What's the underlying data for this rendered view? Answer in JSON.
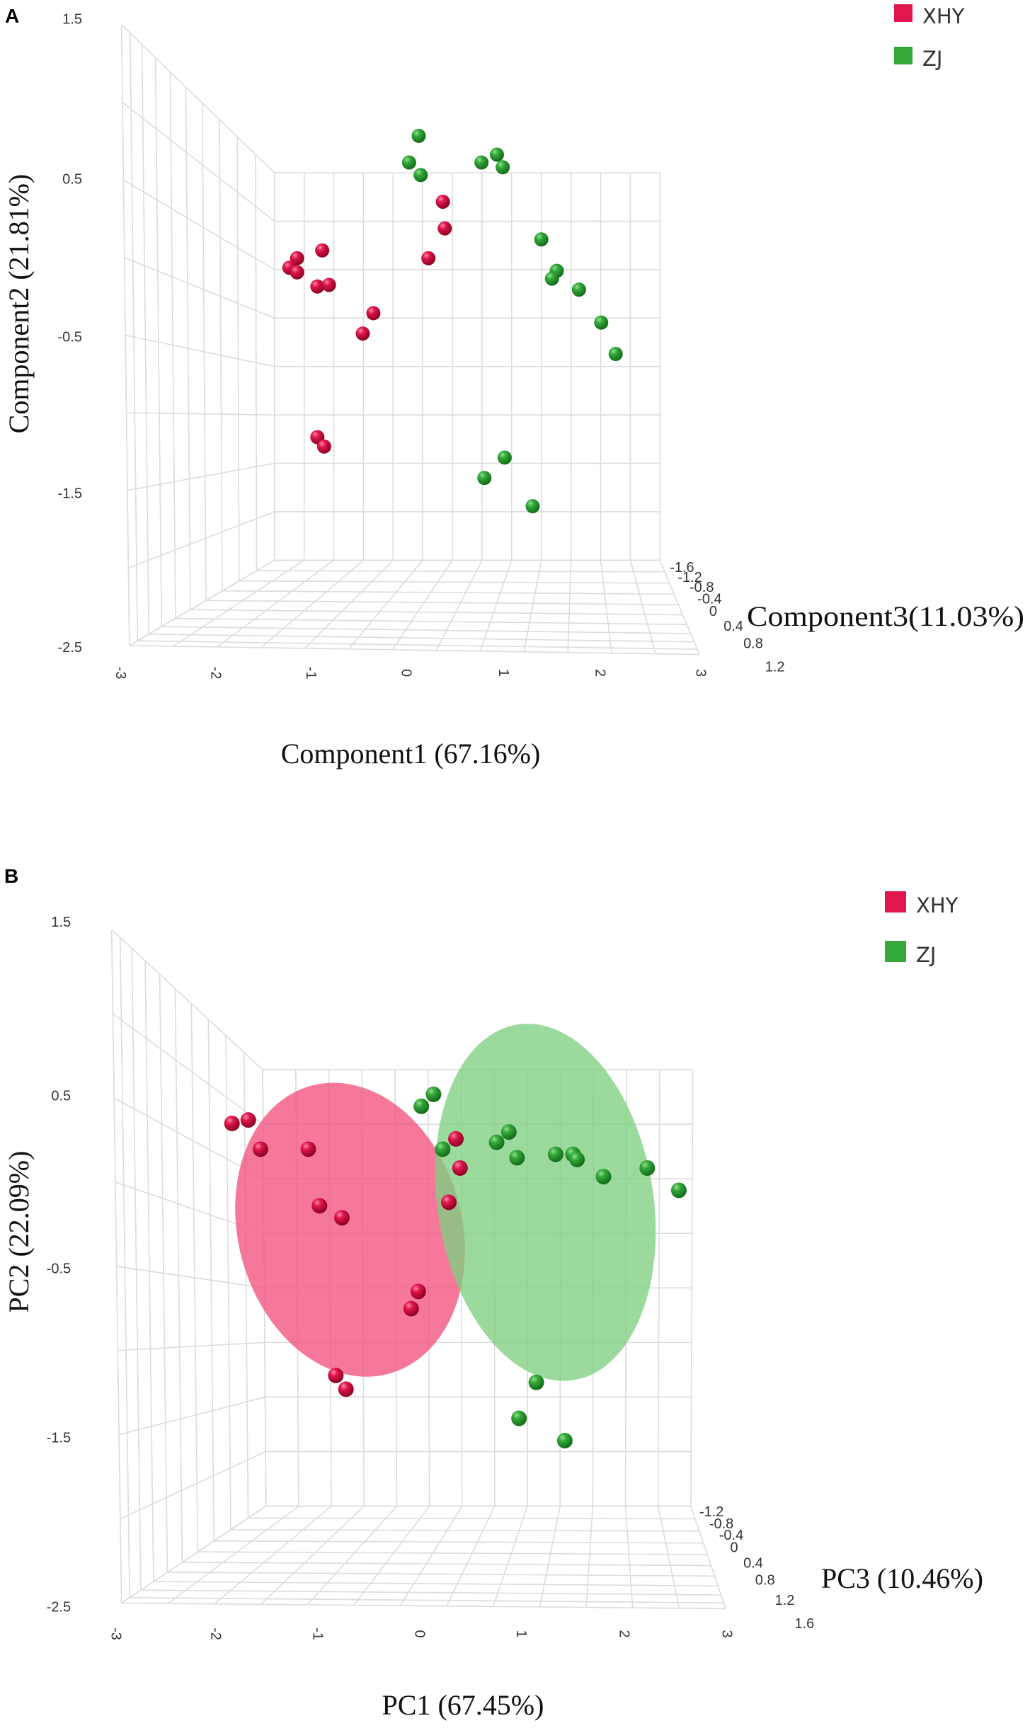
{
  "chart_data": [
    {
      "panel_label": "A",
      "type": "scatter",
      "projection": "3d",
      "xlabel": "Component1 (67.16%)",
      "ylabel": "Component2 (21.81%)",
      "zlabel": "Component3(11.03%)",
      "xticks": [
        "-3",
        "-2",
        "-1",
        "0",
        "1",
        "2",
        "3"
      ],
      "yticks": [
        "1.5",
        "0.5",
        "-0.5",
        "-1.5",
        "-2.5"
      ],
      "zticks": [
        "-1.6",
        "-1.2",
        "-0.8",
        "-0.4",
        "0",
        "0.4",
        "0.8",
        "1.2"
      ],
      "xlim": [
        -3,
        3
      ],
      "ylim": [
        -2.5,
        1.5
      ],
      "zlim": [
        -1.6,
        1.2
      ],
      "grid": true,
      "legend_position": "top-right",
      "series": [
        {
          "name": "XHY",
          "color": "#e0164c",
          "points": [
            [
              -1.14,
              0.0
            ],
            [
              -1.22,
              -0.06
            ],
            [
              -1.14,
              -0.09
            ],
            [
              -0.88,
              0.05
            ],
            [
              -0.93,
              -0.18
            ],
            [
              -0.81,
              -0.17
            ],
            [
              -0.35,
              -0.35
            ],
            [
              -0.46,
              -0.48
            ],
            [
              0.37,
              0.36
            ],
            [
              0.39,
              0.19
            ],
            [
              0.22,
              0.0
            ],
            [
              -0.93,
              -1.14
            ],
            [
              -0.86,
              -1.2
            ]
          ]
        },
        {
          "name": "ZJ",
          "color": "#34a83a",
          "points": [
            [
              0.12,
              0.78
            ],
            [
              0.02,
              0.61
            ],
            [
              0.14,
              0.53
            ],
            [
              0.77,
              0.61
            ],
            [
              0.93,
              0.66
            ],
            [
              0.99,
              0.58
            ],
            [
              1.39,
              0.12
            ],
            [
              1.55,
              -0.08
            ],
            [
              1.5,
              -0.13
            ],
            [
              1.78,
              -0.2
            ],
            [
              2.01,
              -0.41
            ],
            [
              2.16,
              -0.61
            ],
            [
              1.01,
              -1.27
            ],
            [
              0.8,
              -1.4
            ],
            [
              1.3,
              -1.58
            ]
          ]
        }
      ]
    },
    {
      "panel_label": "B",
      "type": "scatter",
      "projection": "3d",
      "xlabel": "PC1 (67.45%)",
      "ylabel": "PC2 (22.09%)",
      "zlabel": "PC3 (10.46%)",
      "xticks": [
        "-3",
        "-2",
        "-1",
        "0",
        "1",
        "2",
        "3"
      ],
      "yticks": [
        "1.5",
        "0.5",
        "-0.5",
        "-1.5",
        "-2.5"
      ],
      "zticks": [
        "-1.2",
        "-0.8",
        "-0.4",
        "0",
        "0.4",
        "0.8",
        "1.2",
        "1.6"
      ],
      "xlim": [
        -3,
        3
      ],
      "ylim": [
        -2.5,
        1.5
      ],
      "zlim": [
        -1.2,
        1.6
      ],
      "grid": true,
      "legend_position": "top-right",
      "series": [
        {
          "name": "XHY",
          "color": "#e0164c",
          "ellipse_color": "#f2527e",
          "ellipse": {
            "center": [
              -0.69,
              -0.28
            ],
            "semi_axes": [
              1.1,
              0.87
            ]
          },
          "points": [
            [
              -1.85,
              0.34
            ],
            [
              -1.69,
              0.36
            ],
            [
              -1.57,
              0.19
            ],
            [
              -1.1,
              0.19
            ],
            [
              -0.99,
              -0.14
            ],
            [
              -0.77,
              -0.21
            ],
            [
              0.35,
              0.25
            ],
            [
              0.39,
              0.08
            ],
            [
              0.28,
              -0.12
            ],
            [
              -0.02,
              -0.64
            ],
            [
              -0.09,
              -0.74
            ],
            [
              -0.83,
              -1.13
            ],
            [
              -0.73,
              -1.21
            ]
          ]
        },
        {
          "name": "ZJ",
          "color": "#34a83a",
          "ellipse_color": "#7fcf80",
          "ellipse": {
            "center": [
              1.23,
              -0.12
            ],
            "semi_axes": [
              1.06,
              1.05
            ]
          },
          "points": [
            [
              0.13,
              0.51
            ],
            [
              0.01,
              0.44
            ],
            [
              0.22,
              0.19
            ],
            [
              0.75,
              0.23
            ],
            [
              0.87,
              0.29
            ],
            [
              0.95,
              0.14
            ],
            [
              1.33,
              0.16
            ],
            [
              1.5,
              0.16
            ],
            [
              1.54,
              0.13
            ],
            [
              1.8,
              0.03
            ],
            [
              2.23,
              0.08
            ],
            [
              2.54,
              -0.05
            ],
            [
              1.14,
              -1.17
            ],
            [
              0.97,
              -1.38
            ],
            [
              1.42,
              -1.51
            ]
          ]
        }
      ]
    }
  ]
}
